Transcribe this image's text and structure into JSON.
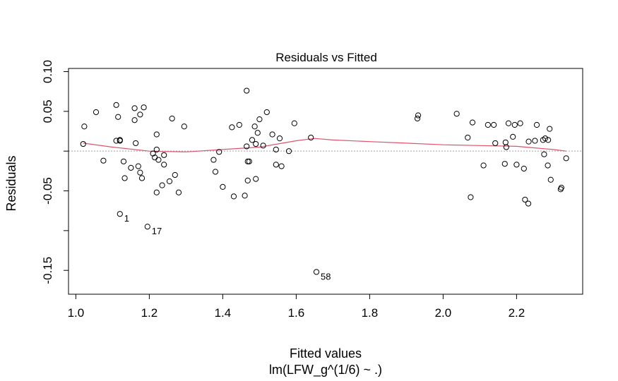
{
  "chart_data": {
    "type": "scatter",
    "title": "Residuals vs Fitted",
    "xlabel": "Fitted values",
    "subtitle": "lm(LFW_g^(1/6) ~ .)",
    "ylabel": "Residuals",
    "xlim": [
      0.98,
      2.38
    ],
    "ylim": [
      -0.18,
      0.104
    ],
    "x_ticks": [
      1.0,
      1.2,
      1.4,
      1.6,
      1.8,
      2.0,
      2.2
    ],
    "x_tick_labels": [
      "1.0",
      "1.2",
      "1.4",
      "1.6",
      "1.8",
      "2.0",
      "2.2"
    ],
    "y_ticks": [
      0.1,
      0.05,
      0.0,
      -0.05,
      -0.1,
      -0.15
    ],
    "y_tick_labels": [
      "0.10",
      "0.05",
      "",
      "-0.05",
      "",
      "-0.15"
    ],
    "zero_line": true,
    "smooth_color": "#df536b",
    "point_color": "#000000",
    "labeled_points": [
      {
        "label": "1",
        "x": 1.12,
        "y": -0.079
      },
      {
        "label": "17",
        "x": 1.195,
        "y": -0.095
      },
      {
        "label": "58",
        "x": 1.655,
        "y": -0.152
      }
    ],
    "points": [
      [
        1.02,
        0.009
      ],
      [
        1.023,
        0.031
      ],
      [
        1.055,
        0.049
      ],
      [
        1.075,
        -0.012
      ],
      [
        1.11,
        0.058
      ],
      [
        1.11,
        0.013
      ],
      [
        1.115,
        0.043
      ],
      [
        1.12,
        0.013
      ],
      [
        1.12,
        0.014
      ],
      [
        1.13,
        -0.013
      ],
      [
        1.133,
        -0.034
      ],
      [
        1.15,
        -0.021
      ],
      [
        1.16,
        0.054
      ],
      [
        1.16,
        0.039
      ],
      [
        1.163,
        0.01
      ],
      [
        1.17,
        -0.019
      ],
      [
        1.175,
        0.046
      ],
      [
        1.175,
        -0.027
      ],
      [
        1.18,
        -0.034
      ],
      [
        1.185,
        0.055
      ],
      [
        1.21,
        -0.003
      ],
      [
        1.215,
        -0.008
      ],
      [
        1.22,
        0.021
      ],
      [
        1.22,
        0.002
      ],
      [
        1.22,
        -0.052
      ],
      [
        1.225,
        -0.011
      ],
      [
        1.235,
        -0.043
      ],
      [
        1.24,
        -0.005
      ],
      [
        1.24,
        -0.017
      ],
      [
        1.255,
        -0.038
      ],
      [
        1.262,
        0.041
      ],
      [
        1.27,
        -0.03
      ],
      [
        1.28,
        -0.052
      ],
      [
        1.295,
        0.031
      ],
      [
        1.375,
        -0.011
      ],
      [
        1.38,
        -0.026
      ],
      [
        1.39,
        -0.001
      ],
      [
        1.4,
        -0.045
      ],
      [
        1.425,
        0.03
      ],
      [
        1.43,
        -0.057
      ],
      [
        1.445,
        0.033
      ],
      [
        1.46,
        -0.056
      ],
      [
        1.465,
        0.076
      ],
      [
        1.465,
        0.006
      ],
      [
        1.468,
        -0.037
      ],
      [
        1.468,
        -0.013
      ],
      [
        1.472,
        -0.013
      ],
      [
        1.48,
        0.014
      ],
      [
        1.487,
        0.031
      ],
      [
        1.49,
        -0.035
      ],
      [
        1.49,
        0.009
      ],
      [
        1.495,
        0.023
      ],
      [
        1.5,
        0.04
      ],
      [
        1.51,
        0.007
      ],
      [
        1.52,
        0.049
      ],
      [
        1.535,
        0.021
      ],
      [
        1.545,
        -0.017
      ],
      [
        1.545,
        0.002
      ],
      [
        1.555,
        0.016
      ],
      [
        1.56,
        -0.019
      ],
      [
        1.58,
        0.0
      ],
      [
        1.595,
        0.035
      ],
      [
        1.64,
        0.017
      ],
      [
        1.93,
        0.041
      ],
      [
        1.932,
        0.045
      ],
      [
        2.037,
        0.047
      ],
      [
        2.067,
        0.017
      ],
      [
        2.075,
        -0.058
      ],
      [
        2.08,
        0.036
      ],
      [
        2.11,
        -0.018
      ],
      [
        2.122,
        0.033
      ],
      [
        2.138,
        0.033
      ],
      [
        2.142,
        0.01
      ],
      [
        2.168,
        -0.016
      ],
      [
        2.17,
        0.011
      ],
      [
        2.172,
        0.005
      ],
      [
        2.178,
        0.035
      ],
      [
        2.19,
        0.018
      ],
      [
        2.195,
        0.033
      ],
      [
        2.2,
        -0.017
      ],
      [
        2.21,
        0.035
      ],
      [
        2.22,
        -0.022
      ],
      [
        2.223,
        -0.061
      ],
      [
        2.232,
        -0.066
      ],
      [
        2.233,
        0.012
      ],
      [
        2.25,
        0.013
      ],
      [
        2.255,
        0.033
      ],
      [
        2.272,
        0.014
      ],
      [
        2.275,
        -0.004
      ],
      [
        2.278,
        0.016
      ],
      [
        2.285,
        -0.018
      ],
      [
        2.286,
        0.014
      ],
      [
        2.29,
        0.028
      ],
      [
        2.293,
        -0.036
      ],
      [
        2.32,
        -0.048
      ],
      [
        2.322,
        -0.046
      ],
      [
        2.335,
        -0.009
      ]
    ],
    "smooth": [
      [
        1.02,
        0.01
      ],
      [
        1.1,
        0.005
      ],
      [
        1.2,
        0.0
      ],
      [
        1.3,
        -0.001
      ],
      [
        1.4,
        0.002
      ],
      [
        1.5,
        0.005
      ],
      [
        1.6,
        0.013
      ],
      [
        1.65,
        0.016
      ],
      [
        1.7,
        0.014
      ],
      [
        1.8,
        0.012
      ],
      [
        1.9,
        0.01
      ],
      [
        2.0,
        0.008
      ],
      [
        2.1,
        0.007
      ],
      [
        2.2,
        0.006
      ],
      [
        2.3,
        0.002
      ],
      [
        2.335,
        0.0
      ]
    ]
  }
}
